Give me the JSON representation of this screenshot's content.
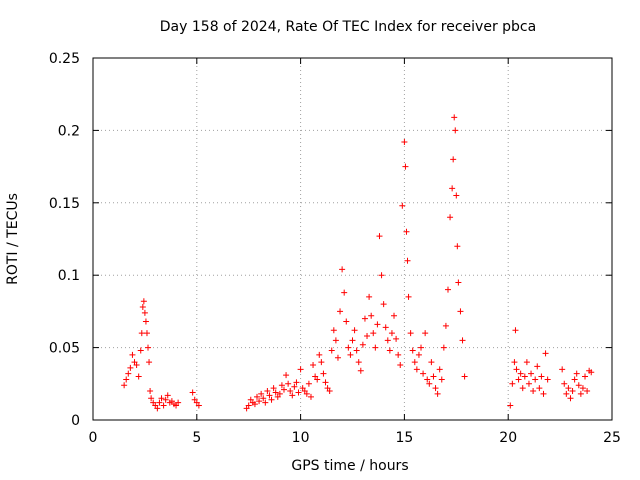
{
  "chart_data": {
    "type": "scatter",
    "title": "Day 158 of 2024, Rate Of TEC Index for receiver pbca",
    "xlabel": "GPS time / hours",
    "ylabel": "ROTI / TECUs",
    "xlim": [
      0,
      25
    ],
    "ylim": [
      0,
      0.25
    ],
    "xticks": [
      0,
      5,
      10,
      15,
      20,
      25
    ],
    "yticks": [
      0,
      0.05,
      0.1,
      0.15,
      0.2,
      0.25
    ],
    "xtick_labels": [
      "0",
      "5",
      "10",
      "15",
      "20",
      "25"
    ],
    "ytick_labels": [
      "0",
      "0.05",
      "0.1",
      "0.15",
      "0.2",
      "0.25"
    ],
    "grid": true,
    "marker": "+",
    "color": "#ff0000",
    "series": [
      {
        "name": "ROTI",
        "points": [
          [
            1.5,
            0.024
          ],
          [
            1.6,
            0.028
          ],
          [
            1.7,
            0.032
          ],
          [
            1.8,
            0.036
          ],
          [
            1.9,
            0.045
          ],
          [
            2.0,
            0.04
          ],
          [
            2.1,
            0.038
          ],
          [
            2.2,
            0.03
          ],
          [
            2.3,
            0.048
          ],
          [
            2.35,
            0.06
          ],
          [
            2.4,
            0.078
          ],
          [
            2.45,
            0.082
          ],
          [
            2.5,
            0.074
          ],
          [
            2.55,
            0.068
          ],
          [
            2.6,
            0.06
          ],
          [
            2.65,
            0.05
          ],
          [
            2.7,
            0.04
          ],
          [
            2.75,
            0.02
          ],
          [
            2.8,
            0.015
          ],
          [
            2.9,
            0.012
          ],
          [
            3.0,
            0.01
          ],
          [
            3.1,
            0.008
          ],
          [
            3.2,
            0.012
          ],
          [
            3.3,
            0.015
          ],
          [
            3.4,
            0.01
          ],
          [
            3.5,
            0.014
          ],
          [
            3.6,
            0.017
          ],
          [
            3.7,
            0.012
          ],
          [
            3.8,
            0.013
          ],
          [
            3.9,
            0.011
          ],
          [
            4.0,
            0.01
          ],
          [
            4.1,
            0.012
          ],
          [
            4.8,
            0.019
          ],
          [
            4.9,
            0.014
          ],
          [
            5.0,
            0.012
          ],
          [
            5.1,
            0.01
          ],
          [
            7.4,
            0.008
          ],
          [
            7.5,
            0.01
          ],
          [
            7.6,
            0.014
          ],
          [
            7.7,
            0.012
          ],
          [
            7.8,
            0.011
          ],
          [
            7.9,
            0.016
          ],
          [
            8.0,
            0.013
          ],
          [
            8.1,
            0.018
          ],
          [
            8.2,
            0.015
          ],
          [
            8.3,
            0.012
          ],
          [
            8.4,
            0.02
          ],
          [
            8.5,
            0.017
          ],
          [
            8.6,
            0.014
          ],
          [
            8.7,
            0.022
          ],
          [
            8.8,
            0.019
          ],
          [
            8.9,
            0.016
          ],
          [
            9.0,
            0.018
          ],
          [
            9.1,
            0.024
          ],
          [
            9.2,
            0.021
          ],
          [
            9.3,
            0.031
          ],
          [
            9.4,
            0.025
          ],
          [
            9.5,
            0.02
          ],
          [
            9.6,
            0.017
          ],
          [
            9.7,
            0.023
          ],
          [
            9.8,
            0.026
          ],
          [
            9.9,
            0.019
          ],
          [
            10.0,
            0.035
          ],
          [
            10.1,
            0.022
          ],
          [
            10.2,
            0.02
          ],
          [
            10.3,
            0.018
          ],
          [
            10.4,
            0.025
          ],
          [
            10.5,
            0.016
          ],
          [
            10.6,
            0.038
          ],
          [
            10.7,
            0.03
          ],
          [
            10.8,
            0.028
          ],
          [
            10.9,
            0.045
          ],
          [
            11.0,
            0.04
          ],
          [
            11.1,
            0.032
          ],
          [
            11.2,
            0.026
          ],
          [
            11.3,
            0.022
          ],
          [
            11.4,
            0.02
          ],
          [
            11.5,
            0.048
          ],
          [
            11.6,
            0.062
          ],
          [
            11.7,
            0.055
          ],
          [
            11.8,
            0.043
          ],
          [
            11.9,
            0.075
          ],
          [
            12.0,
            0.104
          ],
          [
            12.1,
            0.088
          ],
          [
            12.2,
            0.068
          ],
          [
            12.3,
            0.05
          ],
          [
            12.4,
            0.045
          ],
          [
            12.5,
            0.055
          ],
          [
            12.6,
            0.062
          ],
          [
            12.7,
            0.048
          ],
          [
            12.8,
            0.04
          ],
          [
            12.9,
            0.034
          ],
          [
            13.0,
            0.052
          ],
          [
            13.1,
            0.07
          ],
          [
            13.2,
            0.058
          ],
          [
            13.3,
            0.085
          ],
          [
            13.4,
            0.072
          ],
          [
            13.5,
            0.06
          ],
          [
            13.6,
            0.05
          ],
          [
            13.7,
            0.066
          ],
          [
            13.8,
            0.127
          ],
          [
            13.9,
            0.1
          ],
          [
            14.0,
            0.08
          ],
          [
            14.1,
            0.064
          ],
          [
            14.2,
            0.055
          ],
          [
            14.3,
            0.048
          ],
          [
            14.4,
            0.06
          ],
          [
            14.5,
            0.072
          ],
          [
            14.6,
            0.056
          ],
          [
            14.7,
            0.045
          ],
          [
            14.8,
            0.038
          ],
          [
            14.9,
            0.148
          ],
          [
            15.0,
            0.192
          ],
          [
            15.05,
            0.175
          ],
          [
            15.1,
            0.13
          ],
          [
            15.15,
            0.11
          ],
          [
            15.2,
            0.085
          ],
          [
            15.3,
            0.06
          ],
          [
            15.4,
            0.048
          ],
          [
            15.5,
            0.04
          ],
          [
            15.6,
            0.035
          ],
          [
            15.7,
            0.045
          ],
          [
            15.8,
            0.05
          ],
          [
            15.9,
            0.032
          ],
          [
            16.0,
            0.06
          ],
          [
            16.1,
            0.028
          ],
          [
            16.2,
            0.025
          ],
          [
            16.3,
            0.04
          ],
          [
            16.4,
            0.03
          ],
          [
            16.5,
            0.022
          ],
          [
            16.6,
            0.018
          ],
          [
            16.7,
            0.035
          ],
          [
            16.8,
            0.028
          ],
          [
            16.9,
            0.05
          ],
          [
            17.0,
            0.065
          ],
          [
            17.1,
            0.09
          ],
          [
            17.2,
            0.14
          ],
          [
            17.3,
            0.16
          ],
          [
            17.35,
            0.18
          ],
          [
            17.4,
            0.209
          ],
          [
            17.45,
            0.2
          ],
          [
            17.5,
            0.155
          ],
          [
            17.55,
            0.12
          ],
          [
            17.6,
            0.095
          ],
          [
            17.7,
            0.075
          ],
          [
            17.8,
            0.055
          ],
          [
            17.9,
            0.03
          ],
          [
            20.1,
            0.01
          ],
          [
            20.2,
            0.025
          ],
          [
            20.3,
            0.04
          ],
          [
            20.35,
            0.062
          ],
          [
            20.4,
            0.035
          ],
          [
            20.5,
            0.028
          ],
          [
            20.6,
            0.032
          ],
          [
            20.7,
            0.022
          ],
          [
            20.8,
            0.03
          ],
          [
            20.9,
            0.04
          ],
          [
            21.0,
            0.025
          ],
          [
            21.1,
            0.032
          ],
          [
            21.2,
            0.02
          ],
          [
            21.3,
            0.028
          ],
          [
            21.4,
            0.037
          ],
          [
            21.5,
            0.022
          ],
          [
            21.6,
            0.03
          ],
          [
            21.7,
            0.018
          ],
          [
            21.8,
            0.046
          ],
          [
            21.9,
            0.028
          ],
          [
            22.6,
            0.035
          ],
          [
            22.7,
            0.025
          ],
          [
            22.8,
            0.018
          ],
          [
            22.9,
            0.022
          ],
          [
            23.0,
            0.015
          ],
          [
            23.1,
            0.02
          ],
          [
            23.2,
            0.028
          ],
          [
            23.3,
            0.032
          ],
          [
            23.4,
            0.024
          ],
          [
            23.5,
            0.018
          ],
          [
            23.6,
            0.022
          ],
          [
            23.7,
            0.03
          ],
          [
            23.8,
            0.02
          ],
          [
            23.9,
            0.034
          ],
          [
            24.0,
            0.033
          ]
        ]
      }
    ]
  }
}
